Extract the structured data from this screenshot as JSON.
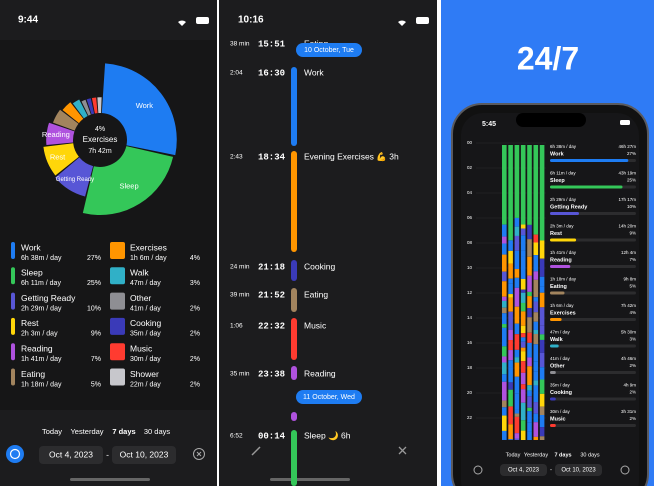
{
  "chart_data": {
    "type": "pie",
    "categories": [
      "Work",
      "Sleep",
      "Getting Ready",
      "Rest",
      "Reading",
      "Eating",
      "Exercises",
      "Walk",
      "Other",
      "Cooking",
      "Music",
      "Shower"
    ],
    "values": [
      27,
      25,
      10,
      9,
      7,
      5,
      4,
      3,
      2,
      2,
      2,
      2
    ],
    "value_labels": [
      "27%",
      "25%",
      "10%",
      "9%",
      "7%",
      "5%",
      "4%",
      "3%",
      "2%",
      "2%",
      "2%",
      "2%"
    ],
    "details": [
      "6h 38m / day",
      "6h 11m / day",
      "2h 29m / day",
      "2h 3m / day",
      "1h 41m / day",
      "1h 18m / day",
      "1h 6m / day",
      "47m / day",
      "41m / day",
      "35m / day",
      "30m / day",
      "22m / day"
    ],
    "colors": [
      "#1e7cf2",
      "#34c759",
      "#5856d6",
      "#ffd60a",
      "#af52de",
      "#a2845e",
      "#ff9500",
      "#30b0c7",
      "#8e8e93",
      "#3a3ab8",
      "#ff3b30",
      "#c7c7cc"
    ]
  },
  "activities_screen": {
    "status_time": "9:44",
    "center_total": "7h 42m",
    "tabs": [
      "Today",
      "Yesterday",
      "7 days",
      "30 days"
    ],
    "selected_tab": 2,
    "date_from": "Oct 4, 2023",
    "date_separator": "-",
    "date_to": "Oct 10, 2023"
  },
  "timeline_screen": {
    "status_time": "10:16",
    "entries": [
      {
        "duration": "38 min",
        "time": "15:51",
        "title": "Eating",
        "color": "#a2845e"
      },
      {
        "date": "10 October, Tue"
      },
      {
        "duration": "2:04",
        "time": "16:30",
        "title": "Work",
        "color": "#1e7cf2"
      },
      {
        "duration": "2:43",
        "time": "18:34",
        "title": "Evening Exercises 💪 3h",
        "color": "#ff9500"
      },
      {
        "duration": "24 min",
        "time": "21:18",
        "title": "Cooking",
        "color": "#3a3ab8"
      },
      {
        "duration": "39 min",
        "time": "21:52",
        "title": "Eating",
        "color": "#a2845e"
      },
      {
        "duration": "1:06",
        "time": "22:32",
        "title": "Music",
        "color": "#ff3b30"
      },
      {
        "duration": "35 min",
        "time": "23:38",
        "title": "Reading",
        "color": "#af52de"
      },
      {
        "date": "11 October, Wed"
      },
      {
        "duration": "6:52",
        "time": "00:14",
        "title": "Sleep 🌙 6h",
        "color": "#34c759"
      }
    ]
  },
  "promo_screen": {
    "headline": "24/7",
    "status_time": "5:45",
    "hour_labels": [
      "00",
      "02",
      "04",
      "06",
      "08",
      "10",
      "12",
      "14",
      "16",
      "18",
      "20",
      "22"
    ],
    "items": [
      {
        "per_day": "6h 38m / day",
        "total": "46h 27m",
        "name": "Work",
        "share": 27,
        "share_label": "27%",
        "color": "#1e7cf2"
      },
      {
        "per_day": "6h 11m / day",
        "total": "43h 19m",
        "name": "Sleep",
        "share": 25,
        "share_label": "25%",
        "color": "#34c759"
      },
      {
        "per_day": "2h 29m / day",
        "total": "17h 17m",
        "name": "Getting Ready",
        "share": 10,
        "share_label": "10%",
        "color": "#5856d6"
      },
      {
        "per_day": "2h 3m / day",
        "total": "14h 20m",
        "name": "Rest",
        "share": 9,
        "share_label": "9%",
        "color": "#ffd60a"
      },
      {
        "per_day": "1h 41m / day",
        "total": "12h 4m",
        "name": "Reading",
        "share": 7,
        "share_label": "7%",
        "color": "#af52de"
      },
      {
        "per_day": "1h 18m / day",
        "total": "9h 8m",
        "name": "Eating",
        "share": 5,
        "share_label": "5%",
        "color": "#a2845e"
      },
      {
        "per_day": "1h 6m / day",
        "total": "7h 42m",
        "name": "Exercises",
        "share": 4,
        "share_label": "4%",
        "color": "#ff9500"
      },
      {
        "per_day": "47m / day",
        "total": "5h 30m",
        "name": "Walk",
        "share": 3,
        "share_label": "3%",
        "color": "#30b0c7"
      },
      {
        "per_day": "41m / day",
        "total": "4h 46m",
        "name": "Other",
        "share": 2,
        "share_label": "2%",
        "color": "#8e8e93"
      },
      {
        "per_day": "35m / day",
        "total": "4h 9m",
        "name": "Cooking",
        "share": 2,
        "share_label": "2%",
        "color": "#3a3ab8"
      },
      {
        "per_day": "30m / day",
        "total": "3h 31m",
        "name": "Music",
        "share": 2,
        "share_label": "2%",
        "color": "#ff3b30"
      }
    ],
    "tabs": [
      "Today",
      "Yesterday",
      "7 days",
      "30 days"
    ],
    "selected_tab": 2,
    "date_from": "Oct 4, 2023",
    "date_separator": "-",
    "date_to": "Oct 10, 2023"
  }
}
